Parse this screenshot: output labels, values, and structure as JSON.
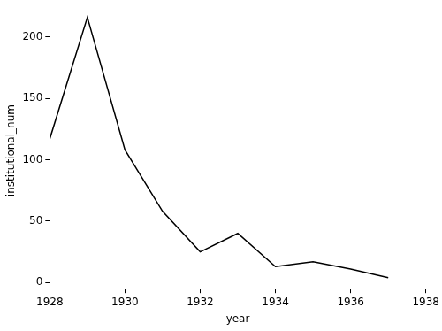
{
  "chart_data": {
    "type": "line",
    "x": [
      1928,
      1929,
      1930,
      1931,
      1932,
      1933,
      1934,
      1935,
      1936,
      1937
    ],
    "values": [
      117,
      216,
      108,
      58,
      25,
      40,
      13,
      17,
      11,
      4
    ],
    "x_label": "year",
    "y_label": "institutional_num",
    "color": "#000000",
    "xlim": [
      1928,
      1938
    ],
    "xticks": [
      1928,
      1930,
      1932,
      1934,
      1936,
      1938
    ],
    "ylim": [
      -5,
      220
    ],
    "yticks": [
      0,
      50,
      100,
      150,
      200
    ],
    "grid": false
  }
}
